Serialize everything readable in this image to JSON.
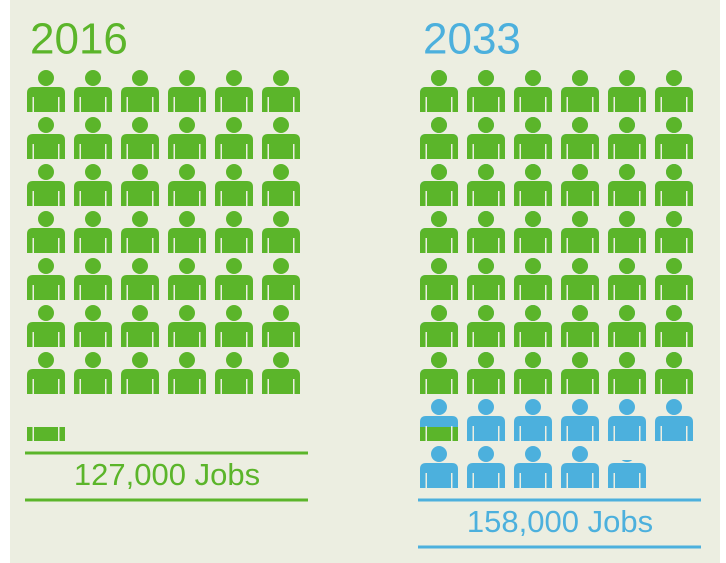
{
  "chart_data": {
    "type": "pictogram",
    "categories": [
      "2016",
      "2033"
    ],
    "values": [
      127000,
      158000
    ],
    "value_labels": [
      "127,000 Jobs",
      "158,000 Jobs"
    ],
    "unit": 3000,
    "colors": [
      "#5bb52a",
      "#4cb0dd"
    ]
  }
}
